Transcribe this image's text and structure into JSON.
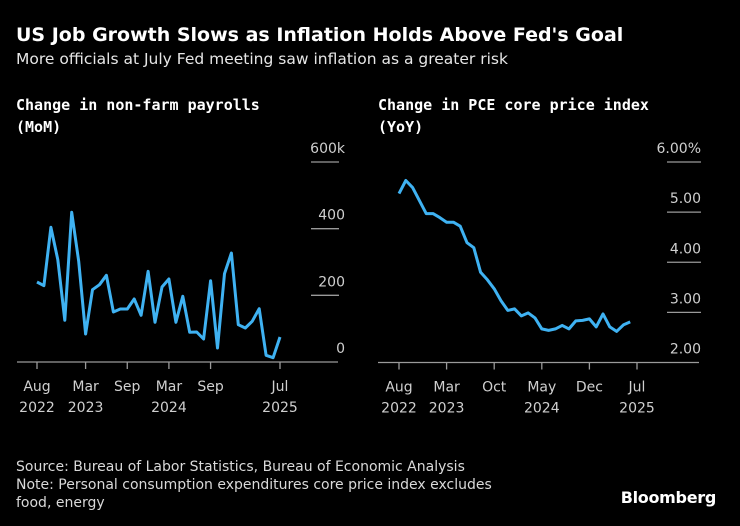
{
  "header": {
    "title": "US Job Growth Slows as Inflation Holds Above Fed's Goal",
    "subtitle": "More officials at July Fed meeting saw inflation as a greater risk"
  },
  "chart_data": [
    {
      "type": "line",
      "title_lines": [
        "Change in non-farm payrolls",
        "(MoM)"
      ],
      "x_start": "2022-08",
      "x_end": "2025-07",
      "xticks": [
        {
          "label1": "Aug",
          "label2": "2022",
          "month": 0
        },
        {
          "label1": "Mar",
          "label2": "2023",
          "month": 7
        },
        {
          "label1": "Sep",
          "label2": "",
          "month": 13
        },
        {
          "label1": "Mar",
          "label2": "2024",
          "month": 19
        },
        {
          "label1": "Sep",
          "label2": "",
          "month": 25
        },
        {
          "label1": "Jul",
          "label2": "2025",
          "month": 35
        }
      ],
      "yticks": [
        {
          "value": 0,
          "label": "0"
        },
        {
          "value": 200,
          "label": "200"
        },
        {
          "value": 400,
          "label": "400"
        },
        {
          "value": 600,
          "label": "600k"
        }
      ],
      "ylim": [
        0,
        600
      ],
      "color": "#3fb2f2",
      "values": [
        240,
        229,
        404,
        307,
        125,
        449,
        302,
        84,
        217,
        232,
        260,
        150,
        159,
        159,
        189,
        140,
        272,
        119,
        225,
        249,
        119,
        197,
        89,
        90,
        69,
        244,
        42,
        265,
        327,
        112,
        102,
        122,
        160,
        20,
        13,
        75
      ]
    },
    {
      "type": "line",
      "title_lines": [
        "Change in PCE core price index",
        "(YoY)"
      ],
      "x_start": "2022-08",
      "x_end": "2025-06",
      "xticks": [
        {
          "label1": "Aug",
          "label2": "2022",
          "month": 0
        },
        {
          "label1": "Mar",
          "label2": "2023",
          "month": 7
        },
        {
          "label1": "Oct",
          "label2": "",
          "month": 14
        },
        {
          "label1": "May",
          "label2": "2024",
          "month": 21
        },
        {
          "label1": "Dec",
          "label2": "",
          "month": 28
        },
        {
          "label1": "Jul",
          "label2": "2025",
          "month": 35
        }
      ],
      "yticks": [
        {
          "value": 2,
          "label": "2.00"
        },
        {
          "value": 3,
          "label": "3.00"
        },
        {
          "value": 4,
          "label": "4.00"
        },
        {
          "value": 5,
          "label": "5.00"
        },
        {
          "value": 6,
          "label": "6.00%"
        }
      ],
      "ylim": [
        2,
        6
      ],
      "color": "#3fb2f2",
      "values": [
        5.37,
        5.63,
        5.49,
        5.23,
        4.97,
        4.97,
        4.89,
        4.8,
        4.8,
        4.72,
        4.39,
        4.29,
        3.8,
        3.65,
        3.47,
        3.23,
        3.04,
        3.07,
        2.93,
        2.99,
        2.89,
        2.67,
        2.64,
        2.67,
        2.74,
        2.67,
        2.83,
        2.84,
        2.87,
        2.71,
        2.97,
        2.71,
        2.62,
        2.75,
        2.81
      ]
    }
  ],
  "footer": {
    "source": "Source: Bureau of Labor Statistics, Bureau of Economic Analysis",
    "note1": "Note: Personal consumption expenditures core price index excludes",
    "note2": "food, energy",
    "logo": "Bloomberg"
  }
}
